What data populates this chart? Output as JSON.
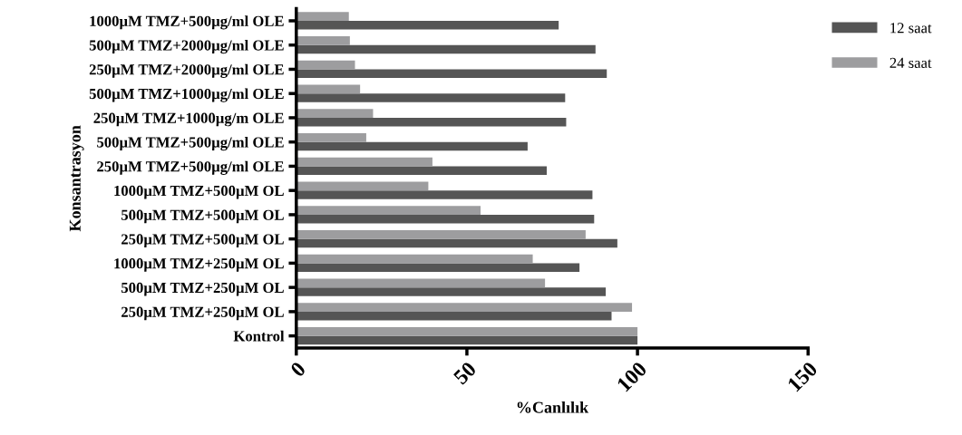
{
  "chart_data": {
    "type": "bar",
    "orientation": "horizontal",
    "xlabel": "%Canlılık",
    "ylabel": "Konsantrasyon",
    "categories": [
      "1000µM TMZ+500µg/ml OLE",
      "500µM TMZ+2000µg/ml OLE",
      "250µM TMZ+2000µg/ml OLE",
      "500µM TMZ+1000µg/ml OLE",
      "250µM TMZ+1000µg/m OLE",
      "500µM TMZ+500µg/ml OLE",
      "250µM TMZ+500µg/ml OLE",
      "1000µM TMZ+500µM OL",
      "500µM TMZ+500µM OL",
      "250µM TMZ+500µM OL",
      "1000µM TMZ+250µM OL",
      "500µM TMZ+250µM OL",
      "250µM TMZ+250µM OL",
      "Kontrol"
    ],
    "series": [
      {
        "name": "12 saat",
        "color": "#555555",
        "values": [
          76.9,
          87.7,
          91.0,
          78.8,
          79.1,
          67.8,
          73.4,
          86.8,
          87.3,
          94.1,
          83.0,
          90.7,
          92.4,
          100
        ]
      },
      {
        "name": "24 saat",
        "color": "#9d9d9f",
        "values": [
          15.4,
          15.7,
          17.2,
          18.7,
          22.5,
          20.5,
          39.9,
          38.7,
          54.0,
          84.8,
          69.3,
          72.9,
          98.4,
          100
        ]
      }
    ],
    "xlim": [
      0,
      150
    ],
    "xticks": [
      0,
      50,
      100,
      150
    ],
    "grid": false,
    "legend": "top right"
  }
}
